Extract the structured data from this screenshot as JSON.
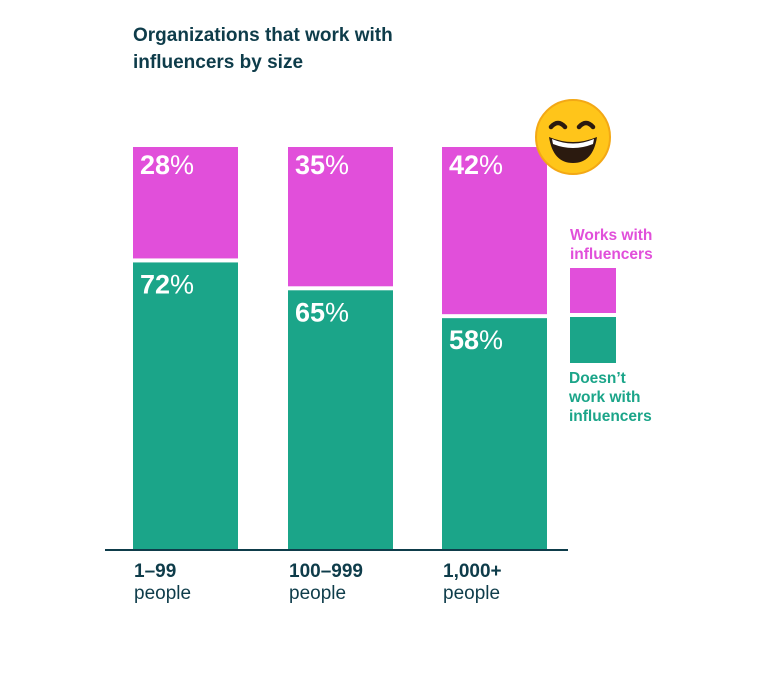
{
  "chart_data": {
    "type": "bar",
    "stacked": true,
    "title": "Organizations that work with influencers by size",
    "categories_top": [
      "1–99",
      "100–999",
      "1,000+"
    ],
    "categories_bottom": [
      "people",
      "people",
      "people"
    ],
    "series": [
      {
        "name": "Doesn’t work with influencers",
        "values": [
          72,
          65,
          58
        ],
        "color": "#1ba589"
      },
      {
        "name": "Works with influencers",
        "values": [
          28,
          35,
          42
        ],
        "color": "#e14fda"
      }
    ],
    "ylim": [
      0,
      100
    ],
    "value_unit": "%",
    "legend_position": "right"
  },
  "legend": {
    "works_label_line1": "Works with",
    "works_label_line2": "influencers",
    "doesnt_label_line1": "Doesn’t",
    "doesnt_label_line2": "work with",
    "doesnt_label_line3": "influencers"
  },
  "colors": {
    "title": "#0e3c4a",
    "works": "#e14fda",
    "doesnt": "#1ba589",
    "axis": "#0e3c4a",
    "emoji_face": "#ffc51a"
  },
  "decoration": {
    "emoji": "grinning-face-with-squinting-eyes-icon"
  }
}
